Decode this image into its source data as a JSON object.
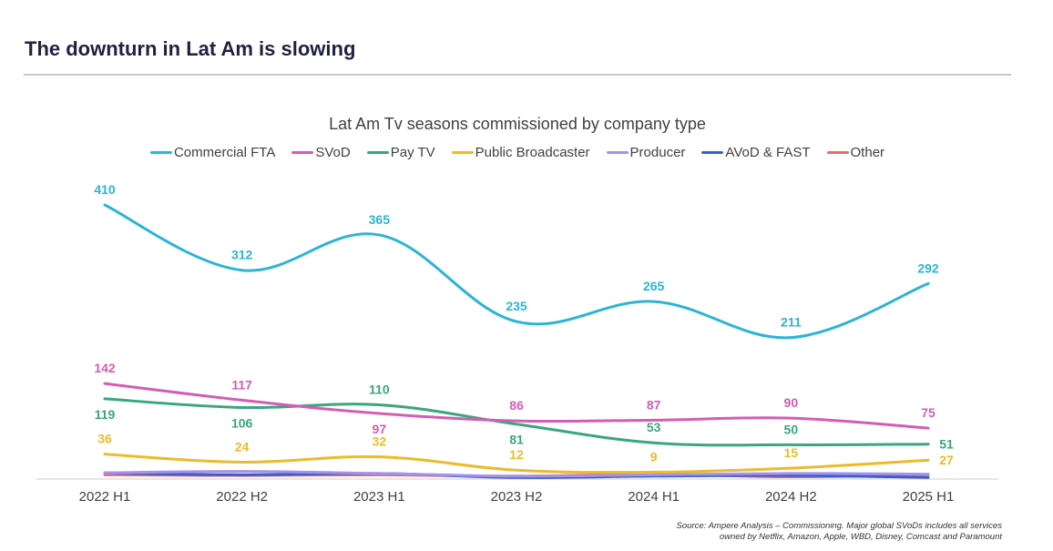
{
  "page": {
    "title": "The downturn in Lat Am is slowing",
    "source_line1": "Source: Ampere Analysis – Commissioning. Major global SVoDs includes all services",
    "source_line2": "owned by Netflix, Amazon, Apple, WBD, Disney, Comcast and Paramount"
  },
  "chart_data": {
    "type": "line",
    "title": "Lat Am Tv seasons commissioned by company type",
    "xlabel": "",
    "ylabel": "",
    "ylim": [
      0,
      420
    ],
    "grid": false,
    "legend_position": "top",
    "categories": [
      "2022 H1",
      "2022 H2",
      "2023 H1",
      "2023 H2",
      "2024 H1",
      "2024 H2",
      "2025 H1"
    ],
    "series": [
      {
        "name": "Commercial FTA",
        "color": "#2bb5d3",
        "values": [
          410,
          312,
          365,
          235,
          265,
          211,
          292
        ],
        "labeled": true
      },
      {
        "name": "SVoD",
        "color": "#d35db4",
        "values": [
          142,
          117,
          97,
          86,
          87,
          90,
          75
        ],
        "labeled": true
      },
      {
        "name": "Pay TV",
        "color": "#3aa67c",
        "values": [
          119,
          106,
          110,
          81,
          53,
          50,
          51
        ],
        "labeled": true
      },
      {
        "name": "Public Broadcaster",
        "color": "#ecbb2b",
        "values": [
          36,
          24,
          32,
          12,
          9,
          15,
          27
        ],
        "labeled": true
      },
      {
        "name": "Producer",
        "color": "#a393ec",
        "values": [
          8,
          10,
          7,
          3,
          5,
          7,
          6
        ],
        "labeled": false
      },
      {
        "name": "AVoD & FAST",
        "color": "#3a5fc8",
        "values": [
          8,
          5,
          7,
          1,
          3,
          4,
          1
        ],
        "labeled": false
      },
      {
        "name": "Other",
        "color": "#ee6a6a",
        "values": [
          5,
          4,
          5,
          3,
          6,
          2,
          5
        ],
        "labeled": false
      }
    ]
  }
}
